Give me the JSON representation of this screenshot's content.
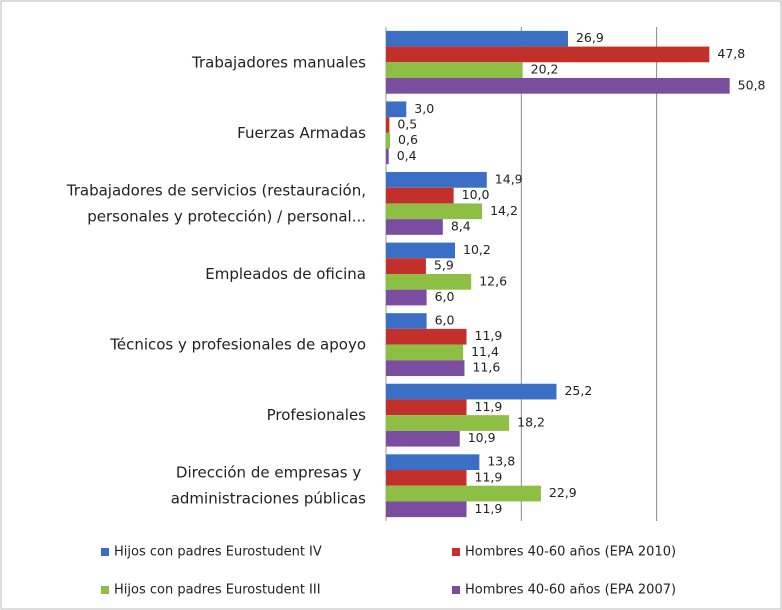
{
  "chart_data": {
    "type": "hbar",
    "categories": [
      "Trabajadores manuales",
      "Fuerzas Armadas",
      "Trabajadores de servicios (restauración,\npersonales y protección) / personal...",
      "Empleados de oficina",
      "Técnicos y profesionales de apoyo",
      "Profesionales",
      "Dirección de empresas y \nadministraciones públicas"
    ],
    "series": [
      {
        "name": "Hijos con padres Eurostudent IV",
        "color": "#3b6fc6",
        "values": [
          26.9,
          3.0,
          14.9,
          10.2,
          6.0,
          25.2,
          13.8
        ],
        "value_labels": [
          "26,9",
          "3,0",
          "14,9",
          "10,2",
          "6,0",
          "25,2",
          "13,8"
        ]
      },
      {
        "name": "Hombres 40-60 años (EPA 2010)",
        "color": "#c3302c",
        "values": [
          47.8,
          0.5,
          10.0,
          5.9,
          11.9,
          11.9,
          11.9
        ],
        "value_labels": [
          "47,8",
          "0,5",
          "10,0",
          "5,9",
          "11,9",
          "11,9",
          "11,9"
        ]
      },
      {
        "name": "Hijos con padres Eurostudent III",
        "color": "#8dbf45",
        "values": [
          20.2,
          0.6,
          14.2,
          12.6,
          11.4,
          18.2,
          22.9
        ],
        "value_labels": [
          "20,2",
          "0,6",
          "14,2",
          "12,6",
          "11,4",
          "18,2",
          "22,9"
        ]
      },
      {
        "name": "Hombres 40-60 años (EPA 2007)",
        "color": "#7a4d9f",
        "values": [
          50.8,
          0.4,
          8.4,
          6.0,
          11.6,
          10.9,
          11.9
        ],
        "value_labels": [
          "50,8",
          "0,4",
          "8,4",
          "6,0",
          "11,6",
          "10,9",
          "11,9"
        ]
      }
    ],
    "xlim": [
      0,
      57.5
    ],
    "xticks": [
      0,
      20,
      40
    ],
    "grid": true,
    "legend": "bottom"
  }
}
